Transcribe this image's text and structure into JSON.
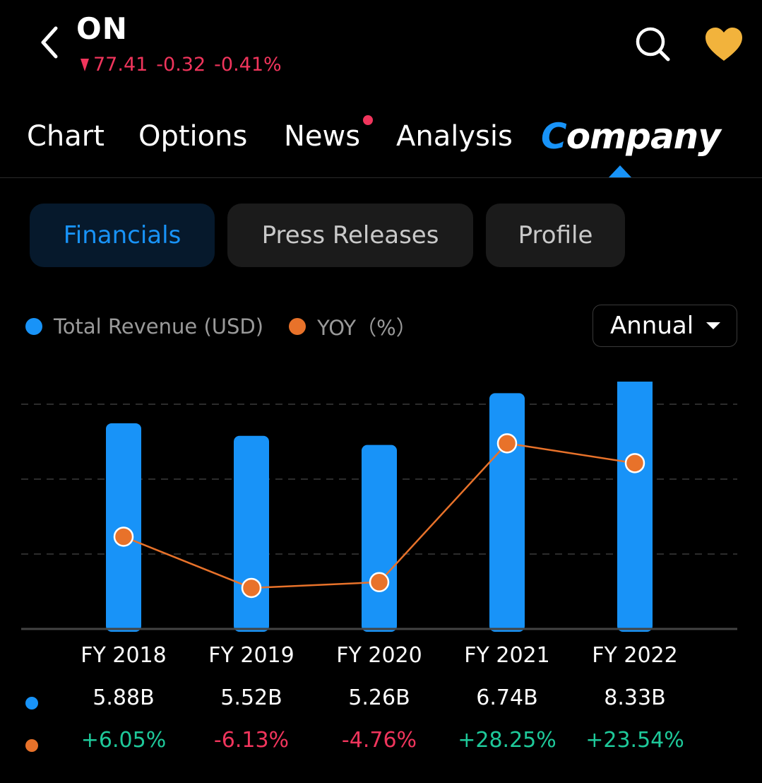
{
  "header": {
    "ticker": "ON",
    "price": "77.41",
    "change": "-0.32",
    "change_pct": "-0.41%",
    "direction": "down",
    "icons": {
      "back": "back-chevron-icon",
      "search": "search-icon",
      "favorite": "heart-icon"
    }
  },
  "tabs": [
    {
      "label": "Chart"
    },
    {
      "label": "Options"
    },
    {
      "label": "News",
      "has_badge": true
    },
    {
      "label": "Analysis"
    },
    {
      "label": "Company",
      "first": "C",
      "rest": "ompany",
      "active": true
    }
  ],
  "subtabs": [
    {
      "label": "Financials",
      "active": true
    },
    {
      "label": "Press Releases"
    },
    {
      "label": "Profile"
    }
  ],
  "legend": {
    "revenue": "Total Revenue (USD)",
    "yoy": "YOY（%）"
  },
  "period_selector": {
    "value": "Annual"
  },
  "colors": {
    "revenue": "#1893f8",
    "yoy": "#e8722a",
    "positive": "#1ec99a",
    "negative": "#f0355c",
    "accent": "#1893f8"
  },
  "chart_data": {
    "type": "bar",
    "categories": [
      "FY 2018",
      "FY 2019",
      "FY 2020",
      "FY 2021",
      "FY 2022"
    ],
    "series": [
      {
        "name": "Total Revenue (USD)",
        "type": "bar",
        "values": [
          5.88,
          5.52,
          5.26,
          6.74,
          8.33
        ],
        "labels": [
          "5.88B",
          "5.52B",
          "5.26B",
          "6.74B",
          "8.33B"
        ]
      },
      {
        "name": "YOY（%）",
        "type": "line",
        "values": [
          6.05,
          -6.13,
          -4.76,
          28.25,
          23.54
        ],
        "labels": [
          "+6.05%",
          "-6.13%",
          "-4.76%",
          "+28.25%",
          "+23.54%"
        ]
      }
    ],
    "grid": true,
    "legend": "top-left"
  }
}
